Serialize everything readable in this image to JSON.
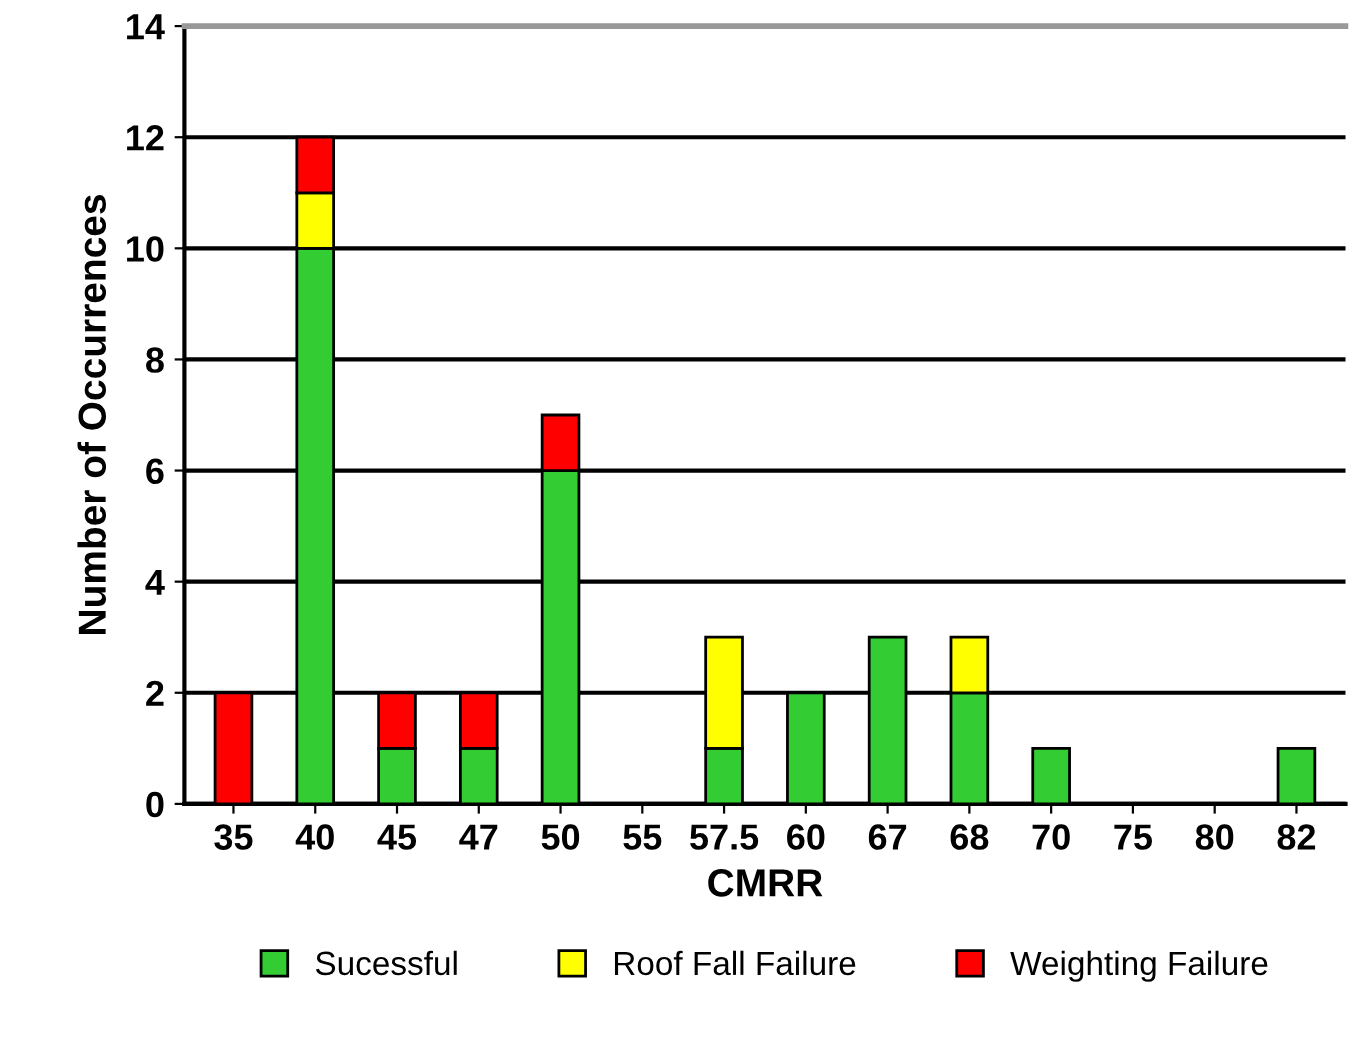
{
  "chart_data": {
    "type": "bar",
    "stacked": true,
    "xlabel": "CMRR",
    "ylabel": "Number of Occurrences",
    "categories": [
      "35",
      "40",
      "45",
      "47",
      "50",
      "55",
      "57.5",
      "60",
      "67",
      "68",
      "70",
      "75",
      "80",
      "82"
    ],
    "series": [
      {
        "name": "Sucessful",
        "color": "#33cc33",
        "values": [
          0,
          10,
          1,
          1,
          6,
          0,
          1,
          2,
          3,
          2,
          1,
          0,
          0,
          1
        ]
      },
      {
        "name": "Roof Fall Failure",
        "color": "#ffff00",
        "values": [
          0,
          1,
          0,
          0,
          0,
          0,
          2,
          0,
          0,
          1,
          0,
          0,
          0,
          0
        ]
      },
      {
        "name": "Weighting Failure",
        "color": "#ff0000",
        "values": [
          2,
          1,
          1,
          1,
          1,
          0,
          0,
          0,
          0,
          0,
          0,
          0,
          0,
          0
        ]
      }
    ],
    "ylim": [
      0,
      14
    ],
    "yticks": [
      0,
      2,
      4,
      6,
      8,
      10,
      12,
      14
    ],
    "grid": "y",
    "legend": "bottom"
  }
}
